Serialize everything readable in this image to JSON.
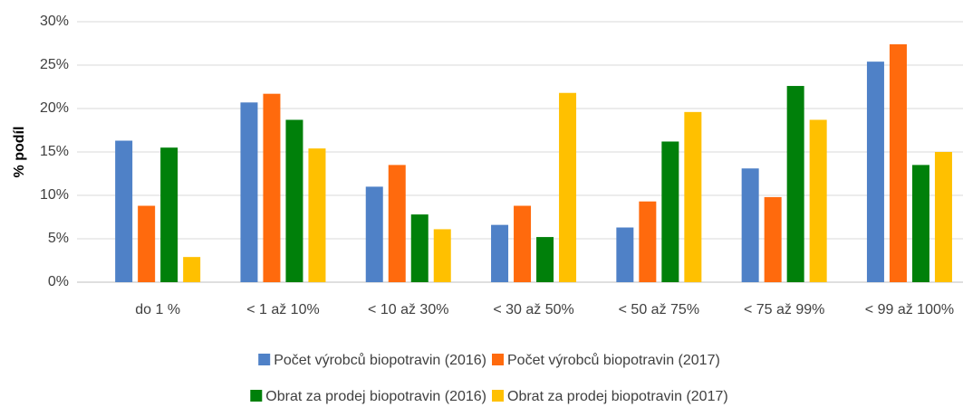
{
  "chart_data": {
    "type": "bar",
    "y_label": "% podíl",
    "categories": [
      "do 1 %",
      "< 1 až 10%",
      "< 10 až 30%",
      "< 30 až 50%",
      "< 50 až 75%",
      "< 75 až 99%",
      "< 99 až 100%"
    ],
    "series": [
      {
        "name": "Počet výrobců biopotravin (2016)",
        "color": "#4f81c7",
        "values": [
          16.3,
          20.7,
          11.0,
          6.6,
          6.3,
          13.1,
          25.4
        ]
      },
      {
        "name": "Počet výrobců biopotravin (2017)",
        "color": "#ff6a0d",
        "values": [
          8.8,
          21.7,
          13.5,
          8.8,
          9.3,
          9.8,
          27.4
        ]
      },
      {
        "name": "Obrat za prodej biopotravin (2016)",
        "color": "#00800a",
        "values": [
          15.5,
          18.7,
          7.8,
          5.2,
          16.2,
          22.6,
          13.5
        ]
      },
      {
        "name": "Obrat za prodej biopotravin (2017)",
        "color": "#ffc000",
        "values": [
          2.9,
          15.4,
          6.1,
          21.8,
          19.6,
          18.7,
          15.0
        ]
      }
    ],
    "ylim": [
      0,
      30
    ],
    "yticks": [
      {
        "value": 0,
        "label": "0%"
      },
      {
        "value": 5,
        "label": "5%"
      },
      {
        "value": 10,
        "label": "10%"
      },
      {
        "value": 15,
        "label": "15%"
      },
      {
        "value": 20,
        "label": "20%"
      },
      {
        "value": 25,
        "label": "25%"
      },
      {
        "value": 30,
        "label": "30%"
      }
    ],
    "grid": true,
    "legend": "bottom"
  }
}
